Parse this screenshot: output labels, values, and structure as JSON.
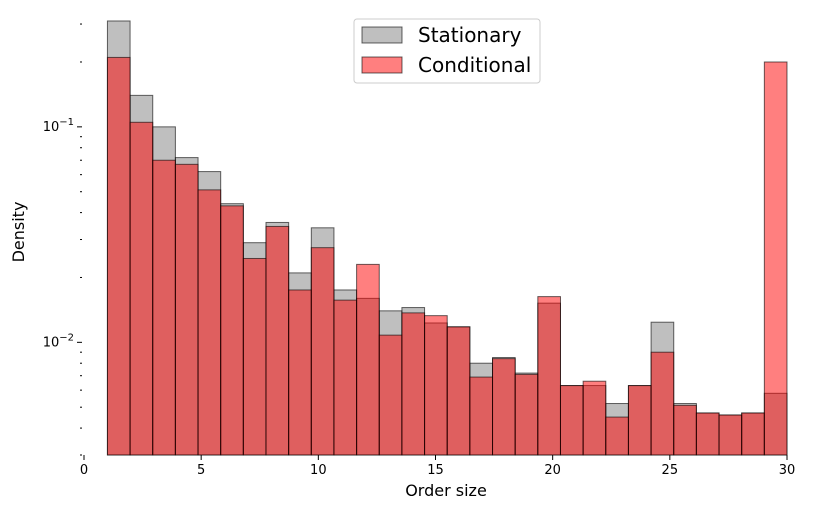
{
  "chart_data": {
    "type": "bar",
    "subtype": "overlaid-histogram",
    "title": "",
    "xlabel": "Order size",
    "ylabel": "Density",
    "xlim": [
      0,
      30
    ],
    "ylim": [
      0.003,
      0.32
    ],
    "yscale": "log",
    "x_ticks": [
      0,
      5,
      10,
      15,
      20,
      25,
      30
    ],
    "y_tick_labels": [
      {
        "value": 0.1,
        "base": "10",
        "exp": "−1"
      },
      {
        "value": 0.01,
        "base": "10",
        "exp": "−2"
      }
    ],
    "bin_edges": [
      1,
      1.9667,
      2.9333,
      3.9,
      4.8667,
      5.8333,
      6.8,
      7.7667,
      8.7333,
      9.7,
      10.6667,
      11.6333,
      12.6,
      13.5667,
      14.5333,
      15.5,
      16.4667,
      17.4333,
      18.4,
      19.3667,
      20.3333,
      21.3,
      22.2667,
      23.2333,
      24.2,
      25.1667,
      26.1333,
      27.1,
      28.0667,
      29.0333,
      30
    ],
    "series": [
      {
        "name": "Stationary",
        "color": "#808080",
        "values": [
          0.31,
          0.14,
          0.1,
          0.072,
          0.062,
          0.044,
          0.029,
          0.036,
          0.021,
          0.034,
          0.0175,
          0.016,
          0.014,
          0.0145,
          0.0123,
          0.0118,
          0.008,
          0.0085,
          0.0072,
          0.0152,
          0.0063,
          0.0063,
          0.0052,
          0.0063,
          0.0124,
          0.0052,
          0.0047,
          0.0046,
          0.0047,
          0.0058
        ]
      },
      {
        "name": "Conditional",
        "color": "#ff0000",
        "values": [
          0.21,
          0.105,
          0.07,
          0.067,
          0.051,
          0.043,
          0.0245,
          0.0345,
          0.0175,
          0.0275,
          0.0157,
          0.023,
          0.0108,
          0.0137,
          0.0133,
          0.0118,
          0.0069,
          0.0084,
          0.0071,
          0.0163,
          0.0063,
          0.0066,
          0.0045,
          0.0063,
          0.009,
          0.0051,
          0.0047,
          0.0046,
          0.0047,
          0.2
        ]
      }
    ],
    "grid": false,
    "legend_position": "top-center"
  }
}
